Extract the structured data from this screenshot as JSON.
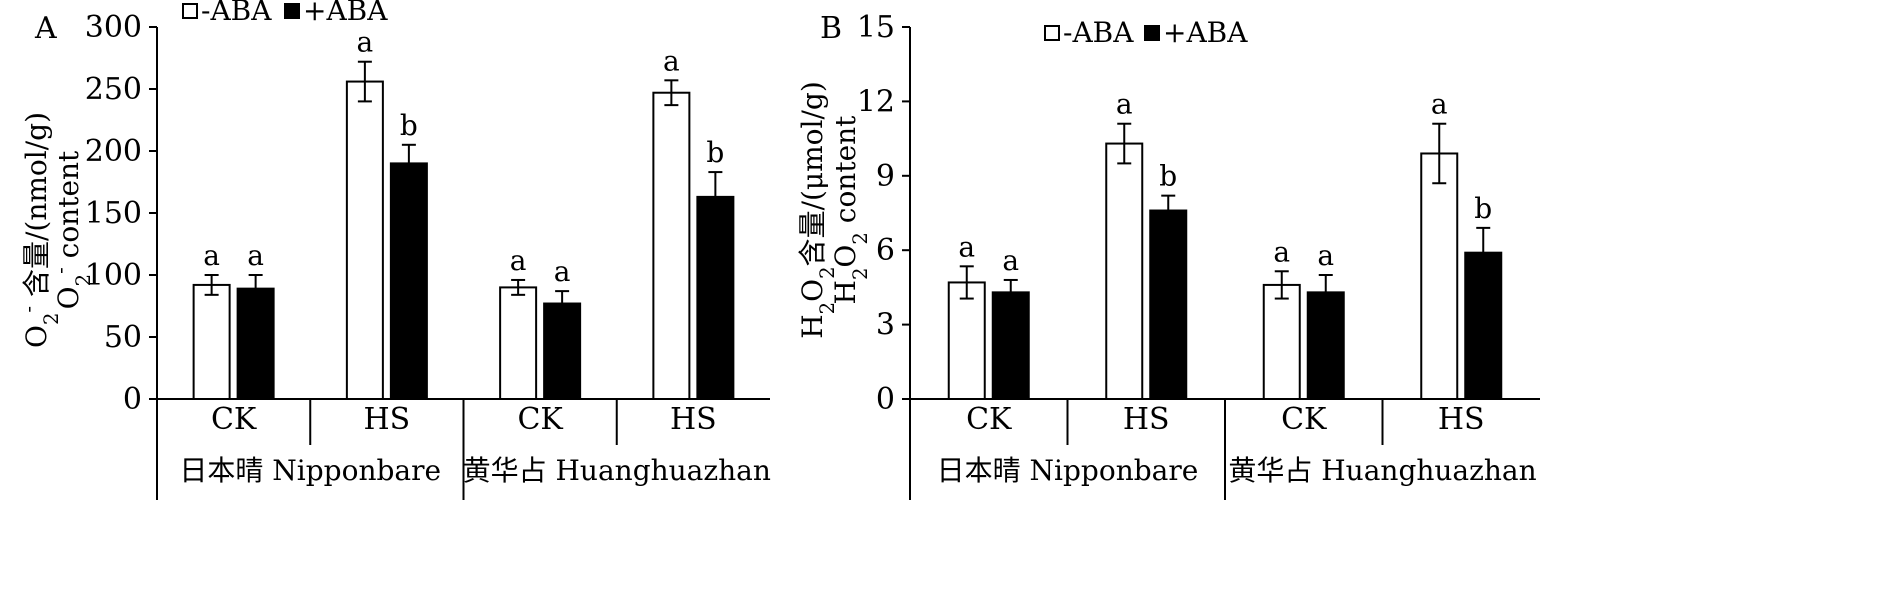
{
  "chart_data": [
    {
      "type": "bar",
      "panel": "A",
      "ylabel": [
        "O2- 含量/(nmol/g)",
        "O2- content"
      ],
      "ylim": [
        0,
        300
      ],
      "yticks": [
        0,
        50,
        100,
        150,
        200,
        250,
        300
      ],
      "groups": [
        {
          "label": "CK",
          "cultivar": "日本晴 Nipponbare"
        },
        {
          "label": "HS",
          "cultivar": "日本晴 Nipponbare"
        },
        {
          "label": "CK",
          "cultivar": "黄华占 Huanghuazhan"
        },
        {
          "label": "HS",
          "cultivar": "黄华占 Huanghuazhan"
        }
      ],
      "cultivars": [
        "日本晴 Nipponbare",
        "黄华占 Huanghuazhan"
      ],
      "series": [
        {
          "name": "-ABA",
          "color": "#ffffff",
          "values": [
            92,
            256,
            90,
            247
          ],
          "errors": [
            8,
            16,
            6,
            10
          ],
          "letters": [
            "a",
            "a",
            "a",
            "a"
          ]
        },
        {
          "name": "+ABA",
          "color": "#000000",
          "values": [
            89,
            190,
            77,
            163
          ],
          "errors": [
            11,
            15,
            10,
            20
          ],
          "letters": [
            "a",
            "b",
            "a",
            "b"
          ]
        }
      ],
      "legend": "top"
    },
    {
      "type": "bar",
      "panel": "B",
      "ylabel": [
        "H2O2含量/(μmol/g)",
        "H2O2 content"
      ],
      "ylim": [
        0,
        15
      ],
      "yticks": [
        0,
        3,
        6,
        9,
        12,
        15
      ],
      "groups": [
        {
          "label": "CK",
          "cultivar": "日本晴 Nipponbare"
        },
        {
          "label": "HS",
          "cultivar": "日本晴 Nipponbare"
        },
        {
          "label": "CK",
          "cultivar": "黄华占 Huanghuazhan"
        },
        {
          "label": "HS",
          "cultivar": "黄华占 Huanghuazhan"
        }
      ],
      "cultivars": [
        "日本晴 Nipponbare",
        "黄华占 Huanghuazhan"
      ],
      "series": [
        {
          "name": "-ABA",
          "color": "#ffffff",
          "values": [
            4.7,
            10.3,
            4.6,
            9.9
          ],
          "errors": [
            0.65,
            0.8,
            0.55,
            1.2
          ],
          "letters": [
            "a",
            "a",
            "a",
            "a"
          ]
        },
        {
          "name": "+ABA",
          "color": "#000000",
          "values": [
            4.3,
            7.6,
            4.3,
            5.9
          ],
          "errors": [
            0.5,
            0.6,
            0.7,
            1.0
          ],
          "letters": [
            "a",
            "b",
            "a",
            "b"
          ]
        }
      ],
      "legend": "top"
    }
  ]
}
